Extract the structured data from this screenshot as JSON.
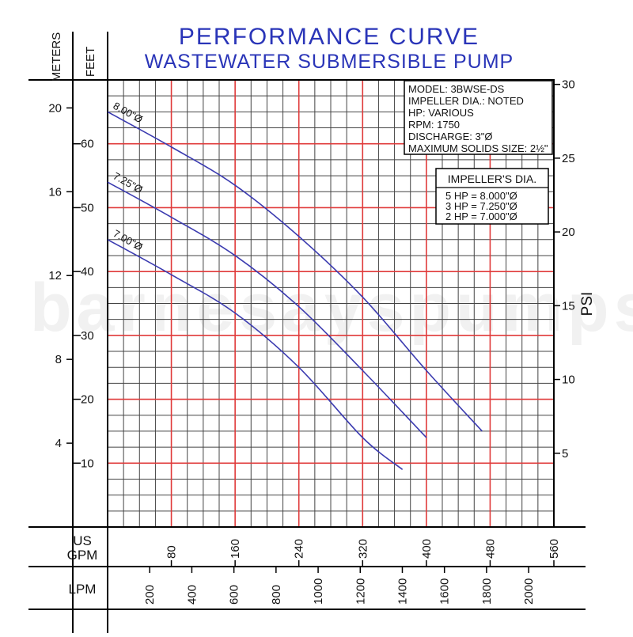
{
  "chart_data": {
    "type": "line",
    "title": "PERFORMANCE CURVE",
    "subtitle": "WASTEWATER SUBMERSIBLE PUMP",
    "watermark": "barnesayspumps",
    "x_gpm": {
      "label": "US GPM",
      "label_lines": [
        "US",
        "GPM"
      ],
      "range": [
        0,
        560
      ],
      "ticks": [
        80,
        160,
        240,
        320,
        400,
        480,
        560
      ]
    },
    "x_lpm": {
      "label": "LPM",
      "ticks": [
        200,
        400,
        600,
        800,
        1000,
        1200,
        1400,
        1600,
        1800,
        2000
      ]
    },
    "y_feet": {
      "label": "FEET",
      "range": [
        0,
        70
      ],
      "ticks": [
        10,
        20,
        30,
        40,
        50,
        60
      ]
    },
    "y_meters": {
      "label": "METERS",
      "ticks": [
        4,
        8,
        12,
        16,
        20
      ]
    },
    "y_psi": {
      "label": "PSI",
      "ticks": [
        5,
        10,
        15,
        20,
        25,
        30
      ]
    },
    "grid": true,
    "spec_box": {
      "lines": [
        "MODEL: 3BWSE-DS",
        "IMPELLER DIA.: NOTED",
        "HP: VARIOUS",
        "RPM: 1750",
        "DISCHARGE: 3\"Ø",
        "MAXIMUM SOLIDS SIZE: 2½\""
      ]
    },
    "impeller_box": {
      "title": "IMPELLER'S DIA.",
      "rows": [
        "5 HP = 8.000\"Ø",
        "3 HP = 7.250\"Ø",
        "2 HP = 7.000\"Ø"
      ]
    },
    "series": [
      {
        "name": "8.00\"Ø",
        "color": "#3b3bb0",
        "points": [
          [
            0,
            65
          ],
          [
            80,
            59.5
          ],
          [
            160,
            53.5
          ],
          [
            240,
            45.5
          ],
          [
            320,
            36
          ],
          [
            400,
            24.5
          ],
          [
            470,
            15
          ]
        ]
      },
      {
        "name": "7.25\"Ø",
        "color": "#3b3bb0",
        "points": [
          [
            0,
            54
          ],
          [
            80,
            48.5
          ],
          [
            160,
            42.5
          ],
          [
            240,
            34.5
          ],
          [
            320,
            24.5
          ],
          [
            400,
            14
          ]
        ]
      },
      {
        "name": "7.00\"Ø",
        "color": "#3b3bb0",
        "points": [
          [
            0,
            45
          ],
          [
            80,
            39.5
          ],
          [
            160,
            33.5
          ],
          [
            240,
            25
          ],
          [
            320,
            14
          ],
          [
            370,
            9
          ]
        ]
      }
    ],
    "colors": {
      "major_grid": "#e03a3a",
      "minor_grid": "#444444",
      "curve": "#3b3bb0",
      "title": "#2a35b8"
    }
  }
}
